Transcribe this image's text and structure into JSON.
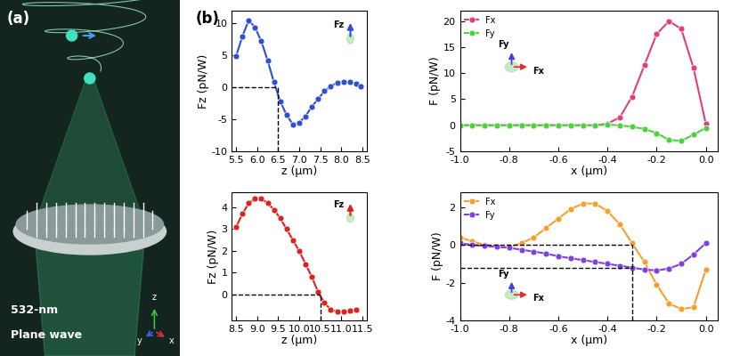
{
  "panel_a": {
    "label": "(a)",
    "texts": [
      "532-nm",
      "Plane wave"
    ],
    "axis_labels": [
      "z",
      "y",
      "x"
    ]
  },
  "panel_b_label": "(b)",
  "chart_data": [
    {
      "type": "line",
      "xlabel": "z (μm)",
      "ylabel": "Fz (pN/W)",
      "x": [
        5.5,
        5.65,
        5.8,
        5.95,
        6.1,
        6.25,
        6.4,
        6.55,
        6.7,
        6.85,
        7.0,
        7.15,
        7.3,
        7.45,
        7.6,
        7.75,
        7.9,
        8.05,
        8.2,
        8.35,
        8.45
      ],
      "series": [
        {
          "color": "#2f4fd0",
          "values": [
            4.9,
            8.0,
            10.5,
            9.4,
            7.2,
            4.2,
            0.8,
            -2.2,
            -4.3,
            -5.8,
            -5.5,
            -4.5,
            -3.0,
            -1.8,
            -0.6,
            0.2,
            0.7,
            0.8,
            0.8,
            0.6,
            0.2
          ]
        }
      ],
      "marker": "circle",
      "xlim": [
        5.4,
        8.6
      ],
      "xticks": [
        5.5,
        6.0,
        6.5,
        7.0,
        7.5,
        8.0,
        8.5
      ],
      "ylim": [
        -10,
        12
      ],
      "yticks": [
        -10,
        -5,
        0,
        5,
        10
      ],
      "reference_lines": {
        "x": 6.5,
        "y": [
          0
        ]
      },
      "inset_labels": [
        "Fz"
      ]
    },
    {
      "type": "line",
      "xlabel": "x (μm)",
      "ylabel": "F (pN/W)",
      "x": [
        -1.0,
        -0.95,
        -0.9,
        -0.85,
        -0.8,
        -0.75,
        -0.7,
        -0.65,
        -0.6,
        -0.55,
        -0.5,
        -0.45,
        -0.4,
        -0.35,
        -0.3,
        -0.25,
        -0.2,
        -0.15,
        -0.1,
        -0.05,
        0.0
      ],
      "series": [
        {
          "name": "Fx",
          "color": "#e0407a",
          "values": [
            0,
            0,
            0,
            0,
            0,
            0,
            0,
            0,
            0,
            0,
            0,
            0,
            0.3,
            1.5,
            5.5,
            11.5,
            17.5,
            20,
            18.5,
            11,
            0.3
          ]
        },
        {
          "name": "Fy",
          "color": "#4fd040",
          "values": [
            0,
            0,
            0,
            0,
            0,
            0,
            0,
            0,
            0,
            0,
            0,
            0,
            0.1,
            0,
            -0.3,
            -0.7,
            -1.5,
            -2.8,
            -3.0,
            -1.8,
            -0.5
          ]
        }
      ],
      "marker": "circle",
      "legend": "upper left",
      "xlim": [
        -1.0,
        0.05
      ],
      "xticks": [
        -1.0,
        -0.8,
        -0.6,
        -0.4,
        -0.2,
        0.0
      ],
      "ylim": [
        -5,
        22
      ],
      "yticks": [
        -5,
        0,
        5,
        10,
        15,
        20
      ],
      "inset_labels": [
        "Fx",
        "Fy"
      ]
    },
    {
      "type": "line",
      "xlabel": "z (μm)",
      "ylabel": "Fz (pN/W)",
      "x": [
        8.5,
        8.65,
        8.8,
        8.95,
        9.1,
        9.25,
        9.4,
        9.55,
        9.7,
        9.85,
        10.0,
        10.15,
        10.3,
        10.45,
        10.6,
        10.75,
        10.9,
        11.05,
        11.2,
        11.35
      ],
      "series": [
        {
          "color": "#e02020",
          "values": [
            3.1,
            3.7,
            4.2,
            4.4,
            4.4,
            4.2,
            3.9,
            3.5,
            3.0,
            2.5,
            2.0,
            1.4,
            0.8,
            0.1,
            -0.4,
            -0.7,
            -0.8,
            -0.8,
            -0.75,
            -0.7
          ]
        }
      ],
      "marker": "circle",
      "xlim": [
        8.4,
        11.6
      ],
      "xticks": [
        8.5,
        9.0,
        9.5,
        10.0,
        10.5,
        11.0,
        11.5
      ],
      "ylim": [
        -1.2,
        4.7
      ],
      "yticks": [
        0,
        1,
        2,
        3,
        4
      ],
      "reference_lines": {
        "x": 10.5,
        "y": [
          0
        ]
      },
      "inset_labels": [
        "Fz"
      ]
    },
    {
      "type": "line",
      "xlabel": "x (μm)",
      "ylabel": "F (pN/W)",
      "x": [
        -1.0,
        -0.95,
        -0.9,
        -0.85,
        -0.8,
        -0.75,
        -0.7,
        -0.65,
        -0.6,
        -0.55,
        -0.5,
        -0.45,
        -0.4,
        -0.35,
        -0.3,
        -0.25,
        -0.2,
        -0.15,
        -0.1,
        -0.05,
        0.0
      ],
      "series": [
        {
          "name": "Fx",
          "color": "#f5a030",
          "values": [
            0.4,
            0.2,
            0.0,
            -0.1,
            -0.1,
            0.1,
            0.4,
            0.9,
            1.4,
            1.9,
            2.2,
            2.2,
            1.8,
            1.1,
            0.1,
            -0.9,
            -2.1,
            -3.1,
            -3.4,
            -3.3,
            -1.3
          ]
        },
        {
          "name": "Fy",
          "color": "#8040e0",
          "values": [
            0.1,
            0.0,
            -0.05,
            -0.1,
            -0.15,
            -0.25,
            -0.35,
            -0.45,
            -0.6,
            -0.7,
            -0.8,
            -0.9,
            -1.0,
            -1.1,
            -1.2,
            -1.3,
            -1.35,
            -1.25,
            -1.0,
            -0.5,
            0.1
          ]
        }
      ],
      "marker": "circle",
      "legend": "upper left",
      "xlim": [
        -1.0,
        0.05
      ],
      "xticks": [
        -1.0,
        -0.8,
        -0.6,
        -0.4,
        -0.2,
        0.0
      ],
      "ylim": [
        -4,
        2.8
      ],
      "yticks": [
        -4,
        -2,
        0,
        2
      ],
      "reference_lines": {
        "x": -0.3,
        "y": [
          0,
          -1.2
        ]
      },
      "inset_labels": [
        "Fx",
        "Fy"
      ]
    }
  ]
}
